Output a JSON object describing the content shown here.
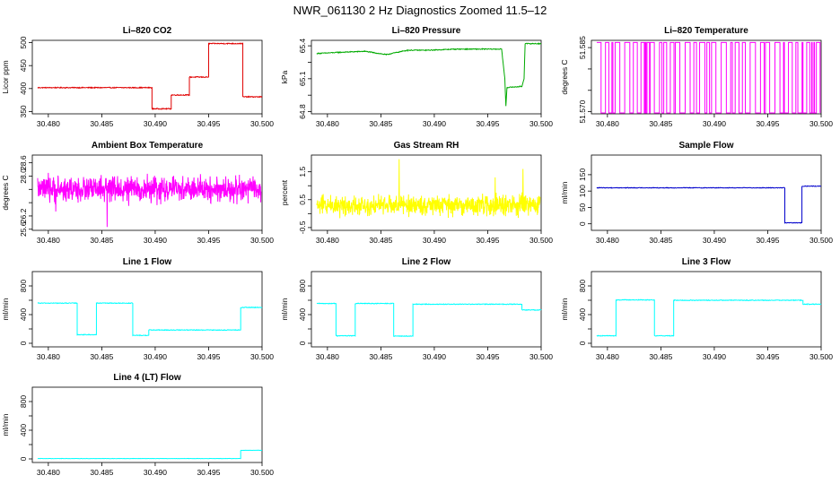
{
  "figure": {
    "title": "NWR_061130  2 Hz Diagnostics Zoomed 11.5–12"
  },
  "chart_data": [
    {
      "type": "line",
      "title": "Li–820 CO2",
      "xlabel": "",
      "ylabel": "Licor ppm",
      "xlim": [
        30.4785,
        30.5
      ],
      "ylim": [
        345,
        505
      ],
      "xticks": [
        30.48,
        30.485,
        30.49,
        30.495,
        30.5
      ],
      "xticklabels": [
        "30.480",
        "30.485",
        "30.490",
        "30.495",
        "30.500"
      ],
      "yticks": [
        350,
        400,
        450,
        500
      ],
      "yticklabels": [
        "350",
        "400",
        "450",
        "500"
      ],
      "color": "#e00000",
      "noise": 1.0,
      "series": [
        {
          "x": [
            30.479,
            30.4897,
            30.4897,
            30.4915,
            30.4915,
            30.4932,
            30.4932,
            30.495,
            30.495,
            30.4982,
            30.4982,
            30.5
          ],
          "y": [
            402,
            402,
            356,
            356,
            386,
            386,
            425,
            425,
            498,
            498,
            382,
            382
          ]
        }
      ]
    },
    {
      "type": "line",
      "title": "Li–820 Pressure",
      "xlabel": "",
      "ylabel": "kPa",
      "xlim": [
        30.4785,
        30.5
      ],
      "ylim": [
        64.78,
        65.45
      ],
      "xticks": [
        30.48,
        30.485,
        30.49,
        30.495,
        30.5
      ],
      "xticklabels": [
        "30.480",
        "30.485",
        "30.490",
        "30.495",
        "30.500"
      ],
      "yticks": [
        64.8,
        65.1,
        65.4
      ],
      "yticklabels": [
        "64.8",
        "65.1",
        "65.4"
      ],
      "minor_yticks": [
        64.95,
        65.25
      ],
      "minor_yticklabels": [
        "64.95",
        "65.25"
      ],
      "color": "#00aa00",
      "noise": 0.004,
      "series": [
        {
          "x": [
            30.479,
            30.481,
            30.4835,
            30.4855,
            30.4875,
            30.4895,
            30.492,
            30.4945,
            30.4963,
            30.4966,
            30.4967,
            30.4968,
            30.4982,
            30.4984,
            30.4985,
            30.5
          ],
          "y": [
            65.33,
            65.34,
            65.35,
            65.32,
            65.36,
            65.36,
            65.37,
            65.37,
            65.37,
            65.1,
            64.85,
            65.02,
            65.03,
            65.1,
            65.42,
            65.42
          ]
        }
      ]
    },
    {
      "type": "line",
      "title": "Li–820 Temperature",
      "xlabel": "",
      "ylabel": "degrees C",
      "xlim": [
        30.4785,
        30.5
      ],
      "ylim": [
        51.5695,
        51.5867
      ],
      "xticks": [
        30.48,
        30.485,
        30.49,
        30.495,
        30.5
      ],
      "xticklabels": [
        "30.480",
        "30.485",
        "30.490",
        "30.495",
        "30.500"
      ],
      "yticks": [
        51.57,
        51.575,
        51.58,
        51.585
      ],
      "yticklabels": [
        "51.570",
        "51.575",
        "51.580",
        "51.585"
      ],
      "show_yticklabels": [
        true,
        false,
        false,
        true
      ],
      "color": "#ff00ff",
      "pattern": "toggle",
      "levels": [
        51.5697,
        51.5862
      ]
    },
    {
      "type": "line",
      "title": "Ambient Box Temperature",
      "xlabel": "",
      "ylabel": "degrees C",
      "xlim": [
        30.4785,
        30.5
      ],
      "ylim": [
        25.55,
        28.95
      ],
      "xticks": [
        30.48,
        30.485,
        30.49,
        30.495,
        30.5
      ],
      "xticklabels": [
        "30.480",
        "30.485",
        "30.490",
        "30.495",
        "30.500"
      ],
      "yticks": [
        25.6,
        26.2,
        26.8,
        27.4,
        28.0,
        28.6
      ],
      "yticklabels": [
        "25.6",
        "26.2",
        "26.8",
        "27.4",
        "28.0",
        "28.6"
      ],
      "show_yticklabels": [
        true,
        true,
        false,
        false,
        true,
        true
      ],
      "color": "#ff00ff",
      "pattern": "noise",
      "center": 27.4,
      "noise": 0.55,
      "spikes": [
        {
          "x": 30.4855,
          "y": 25.7
        },
        {
          "x": 30.4807,
          "y": 26.4
        }
      ]
    },
    {
      "type": "line",
      "title": "Gas Stream RH",
      "xlabel": "",
      "ylabel": "percent",
      "xlim": [
        30.4785,
        30.5
      ],
      "ylim": [
        -0.6,
        2.1
      ],
      "xticks": [
        30.48,
        30.485,
        30.49,
        30.495,
        30.5
      ],
      "xticklabels": [
        "30.480",
        "30.485",
        "30.490",
        "30.495",
        "30.500"
      ],
      "yticks": [
        -0.5,
        0,
        0.5,
        1,
        1.5
      ],
      "yticklabels": [
        "-0.5",
        "0.0",
        "0.5",
        "1.0",
        "1.5"
      ],
      "show_yticklabels": [
        true,
        false,
        true,
        false,
        true
      ],
      "color": "#ffff00",
      "pattern": "noise",
      "center": 0.3,
      "noise": 0.35,
      "spikes": [
        {
          "x": 30.4867,
          "y": 1.95
        },
        {
          "x": 30.4983,
          "y": 1.6
        },
        {
          "x": 30.4957,
          "y": 1.3
        }
      ]
    },
    {
      "type": "line",
      "title": "Sample Flow",
      "xlabel": "",
      "ylabel": "ml/min",
      "xlim": [
        30.4785,
        30.5
      ],
      "ylim": [
        -20,
        210
      ],
      "xticks": [
        30.48,
        30.485,
        30.49,
        30.495,
        30.5
      ],
      "xticklabels": [
        "30.480",
        "30.485",
        "30.490",
        "30.495",
        "30.500"
      ],
      "yticks": [
        0,
        50,
        100,
        150
      ],
      "yticklabels": [
        "0",
        "50",
        "100",
        "150"
      ],
      "color": "#0000cc",
      "noise": 1.0,
      "series": [
        {
          "x": [
            30.479,
            30.4966,
            30.4966,
            30.4982,
            30.4982,
            30.5
          ],
          "y": [
            110,
            110,
            3,
            3,
            115,
            115
          ]
        }
      ]
    },
    {
      "type": "line",
      "title": "Line 1 Flow",
      "xlabel": "",
      "ylabel": "ml/min",
      "xlim": [
        30.4785,
        30.5
      ],
      "ylim": [
        -50,
        1000
      ],
      "xticks": [
        30.48,
        30.485,
        30.49,
        30.495,
        30.5
      ],
      "xticklabels": [
        "30.480",
        "30.485",
        "30.490",
        "30.495",
        "30.500"
      ],
      "yticks": [
        0,
        200,
        400,
        600,
        800
      ],
      "yticklabels": [
        "0",
        "200",
        "400",
        "600",
        "800"
      ],
      "show_yticklabels": [
        true,
        false,
        true,
        false,
        true
      ],
      "color": "#00ffff",
      "noise": 5,
      "series": [
        {
          "x": [
            30.479,
            30.4827,
            30.4827,
            30.4845,
            30.4845,
            30.4879,
            30.4879,
            30.4894,
            30.4894,
            30.498,
            30.498,
            30.5
          ],
          "y": [
            560,
            560,
            120,
            120,
            560,
            560,
            110,
            110,
            185,
            185,
            500,
            500
          ]
        }
      ]
    },
    {
      "type": "line",
      "title": "Line 2 Flow",
      "xlabel": "",
      "ylabel": "ml/min",
      "xlim": [
        30.4785,
        30.5
      ],
      "ylim": [
        -50,
        1000
      ],
      "xticks": [
        30.48,
        30.485,
        30.49,
        30.495,
        30.5
      ],
      "xticklabels": [
        "30.480",
        "30.485",
        "30.490",
        "30.495",
        "30.500"
      ],
      "yticks": [
        0,
        200,
        400,
        600,
        800
      ],
      "yticklabels": [
        "0",
        "200",
        "400",
        "600",
        "800"
      ],
      "show_yticklabels": [
        true,
        false,
        true,
        false,
        true
      ],
      "color": "#00ffff",
      "noise": 5,
      "series": [
        {
          "x": [
            30.479,
            30.4808,
            30.4808,
            30.4826,
            30.4826,
            30.4862,
            30.4862,
            30.488,
            30.488,
            30.4982,
            30.4982,
            30.5
          ],
          "y": [
            555,
            555,
            105,
            105,
            555,
            555,
            100,
            100,
            545,
            545,
            465,
            465
          ]
        }
      ]
    },
    {
      "type": "line",
      "title": "Line 3 Flow",
      "xlabel": "",
      "ylabel": "ml/min",
      "xlim": [
        30.4785,
        30.5
      ],
      "ylim": [
        -50,
        1000
      ],
      "xticks": [
        30.48,
        30.485,
        30.49,
        30.495,
        30.5
      ],
      "xticklabels": [
        "30.480",
        "30.485",
        "30.490",
        "30.495",
        "30.500"
      ],
      "yticks": [
        0,
        200,
        400,
        600,
        800
      ],
      "yticklabels": [
        "0",
        "200",
        "400",
        "600",
        "800"
      ],
      "show_yticklabels": [
        true,
        false,
        true,
        false,
        true
      ],
      "color": "#00ffff",
      "noise": 5,
      "series": [
        {
          "x": [
            30.479,
            30.4808,
            30.4808,
            30.4844,
            30.4844,
            30.4862,
            30.4862,
            30.4983,
            30.4983,
            30.5
          ],
          "y": [
            105,
            105,
            605,
            605,
            105,
            105,
            600,
            600,
            545,
            545
          ]
        }
      ]
    },
    {
      "type": "line",
      "title": "Line 4 (LT) Flow",
      "xlabel": "",
      "ylabel": "ml/min",
      "xlim": [
        30.4785,
        30.5
      ],
      "ylim": [
        -50,
        1000
      ],
      "xticks": [
        30.48,
        30.485,
        30.49,
        30.495,
        30.5
      ],
      "xticklabels": [
        "30.480",
        "30.485",
        "30.490",
        "30.495",
        "30.500"
      ],
      "yticks": [
        0,
        200,
        400,
        600,
        800
      ],
      "yticklabels": [
        "0",
        "200",
        "400",
        "600",
        "800"
      ],
      "show_yticklabels": [
        true,
        false,
        true,
        false,
        true
      ],
      "color": "#00ffff",
      "noise": 2,
      "series": [
        {
          "x": [
            30.479,
            30.498,
            30.498,
            30.5
          ],
          "y": [
            5,
            5,
            120,
            120
          ]
        }
      ]
    }
  ]
}
